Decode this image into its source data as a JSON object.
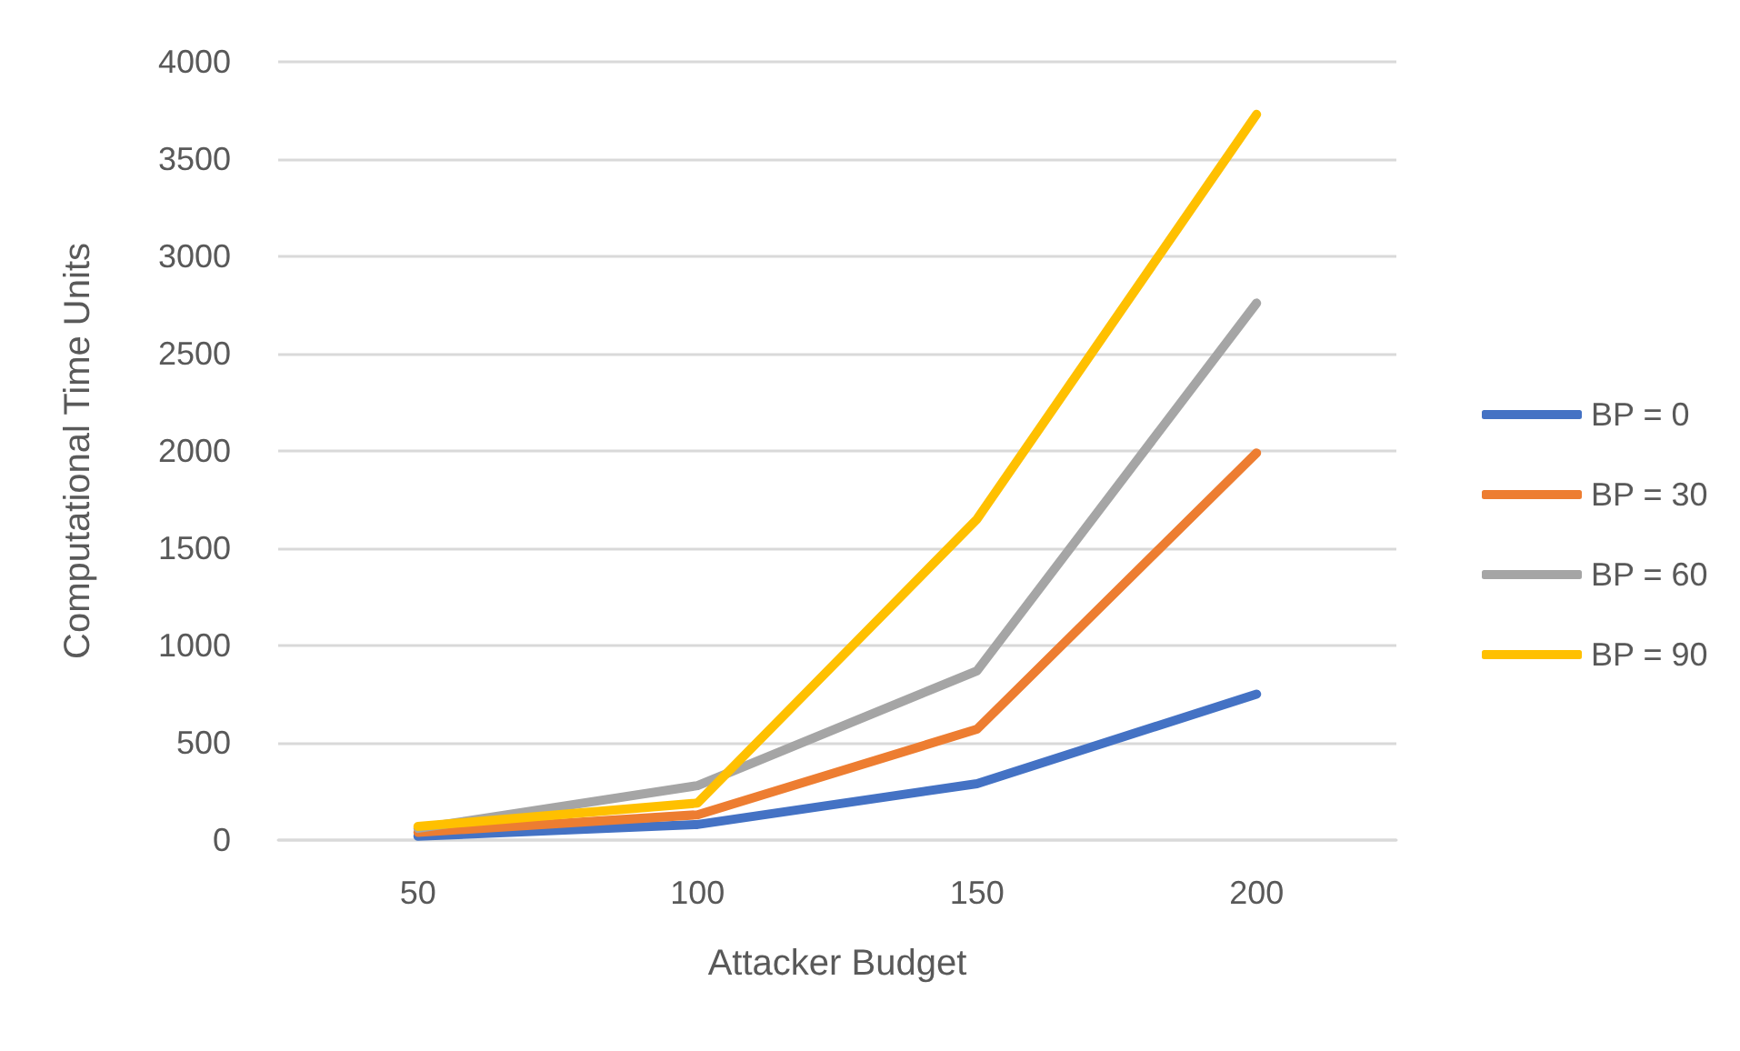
{
  "chart_data": {
    "type": "line",
    "xlabel": "Attacker Budget",
    "ylabel": "Computational Time Units",
    "categories": [
      "50",
      "100",
      "150",
      "200"
    ],
    "series": [
      {
        "name": "BP = 0",
        "color": "#4472c4",
        "values": [
          20,
          80,
          290,
          750
        ]
      },
      {
        "name": "BP = 30",
        "color": "#ed7d31",
        "values": [
          40,
          130,
          570,
          1990
        ]
      },
      {
        "name": "BP = 60",
        "color": "#a5a5a5",
        "values": [
          60,
          280,
          870,
          2760
        ]
      },
      {
        "name": "BP = 90",
        "color": "#ffc000",
        "values": [
          70,
          190,
          1650,
          3730
        ]
      }
    ],
    "ylim": [
      0,
      4000
    ],
    "yticks": [
      0,
      500,
      1000,
      1500,
      2000,
      2500,
      3000,
      3500,
      4000
    ],
    "grid": "y",
    "legend": "right",
    "marker": "none",
    "line_style": "solid"
  }
}
